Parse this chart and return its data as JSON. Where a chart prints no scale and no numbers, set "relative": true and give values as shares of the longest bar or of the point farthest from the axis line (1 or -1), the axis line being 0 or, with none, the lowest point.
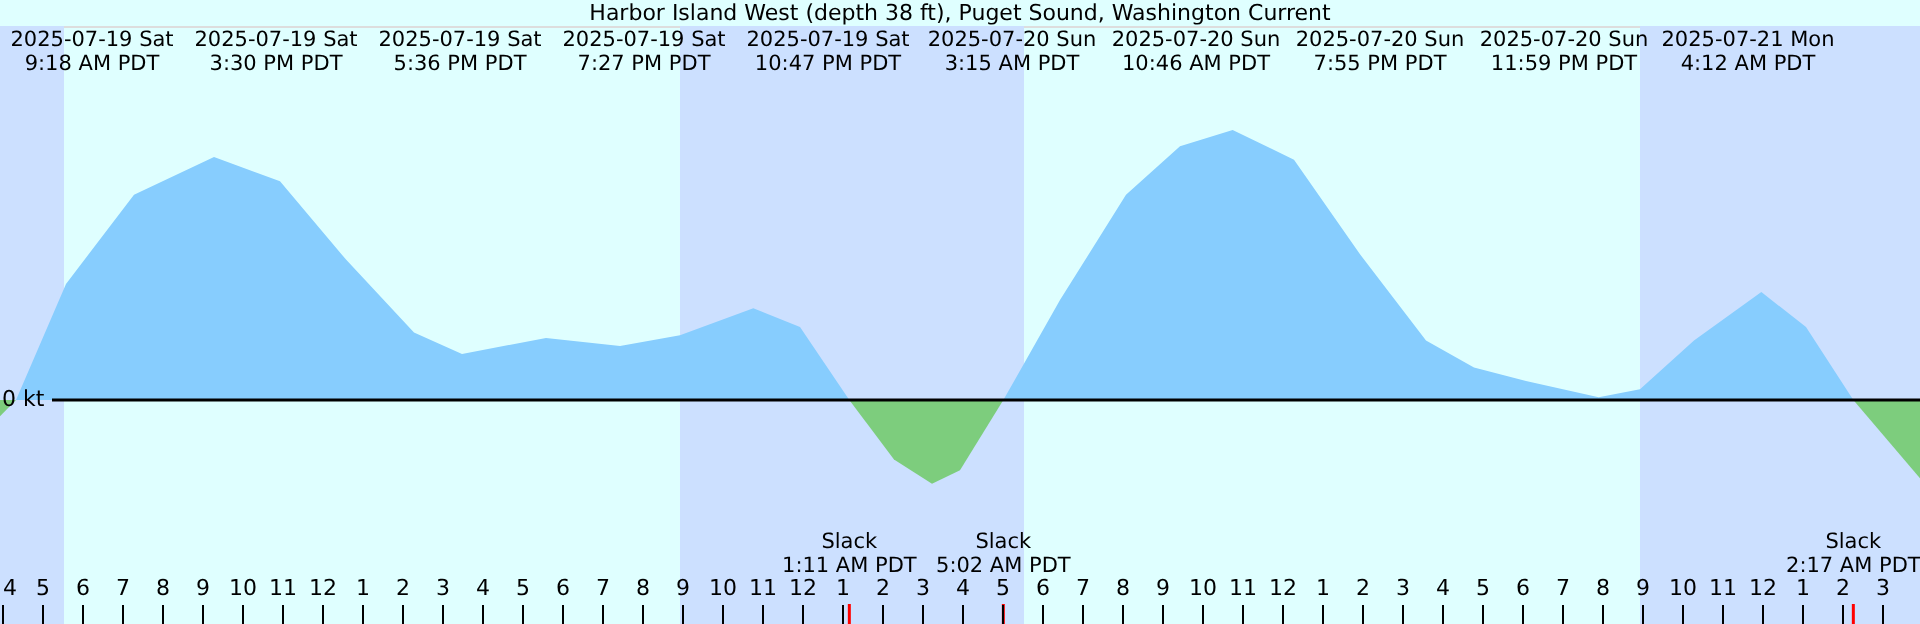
{
  "chart_data": {
    "type": "area",
    "relative": true,
    "title": "Harbor Island West (depth 38 ft), Puget Sound, Washington Current",
    "xlim": [
      "2025-07-19T03:57",
      "2025-07-21T03:57"
    ],
    "xticks": [
      {
        "value": "2025-07-19T04:00",
        "label": "4"
      },
      {
        "value": "2025-07-19T05:00",
        "label": "5"
      },
      {
        "value": "2025-07-19T06:00",
        "label": "6"
      },
      {
        "value": "2025-07-19T07:00",
        "label": "7"
      },
      {
        "value": "2025-07-19T08:00",
        "label": "8"
      },
      {
        "value": "2025-07-19T09:00",
        "label": "9"
      },
      {
        "value": "2025-07-19T10:00",
        "label": "10"
      },
      {
        "value": "2025-07-19T11:00",
        "label": "11"
      },
      {
        "value": "2025-07-19T12:00",
        "label": "12"
      },
      {
        "value": "2025-07-19T13:00",
        "label": "1"
      },
      {
        "value": "2025-07-19T14:00",
        "label": "2"
      },
      {
        "value": "2025-07-19T15:00",
        "label": "3"
      },
      {
        "value": "2025-07-19T16:00",
        "label": "4"
      },
      {
        "value": "2025-07-19T17:00",
        "label": "5"
      },
      {
        "value": "2025-07-19T18:00",
        "label": "6"
      },
      {
        "value": "2025-07-19T19:00",
        "label": "7"
      },
      {
        "value": "2025-07-19T20:00",
        "label": "8"
      },
      {
        "value": "2025-07-19T21:00",
        "label": "9"
      },
      {
        "value": "2025-07-19T22:00",
        "label": "10"
      },
      {
        "value": "2025-07-19T23:00",
        "label": "11"
      },
      {
        "value": "2025-07-20T00:00",
        "label": "12"
      },
      {
        "value": "2025-07-20T01:00",
        "label": "1"
      },
      {
        "value": "2025-07-20T02:00",
        "label": "2"
      },
      {
        "value": "2025-07-20T03:00",
        "label": "3"
      },
      {
        "value": "2025-07-20T04:00",
        "label": "4"
      },
      {
        "value": "2025-07-20T05:00",
        "label": "5"
      },
      {
        "value": "2025-07-20T06:00",
        "label": "6"
      },
      {
        "value": "2025-07-20T07:00",
        "label": "7"
      },
      {
        "value": "2025-07-20T08:00",
        "label": "8"
      },
      {
        "value": "2025-07-20T09:00",
        "label": "9"
      },
      {
        "value": "2025-07-20T10:00",
        "label": "10"
      },
      {
        "value": "2025-07-20T11:00",
        "label": "11"
      },
      {
        "value": "2025-07-20T12:00",
        "label": "12"
      },
      {
        "value": "2025-07-20T13:00",
        "label": "1"
      },
      {
        "value": "2025-07-20T14:00",
        "label": "2"
      },
      {
        "value": "2025-07-20T15:00",
        "label": "3"
      },
      {
        "value": "2025-07-20T16:00",
        "label": "4"
      },
      {
        "value": "2025-07-20T17:00",
        "label": "5"
      },
      {
        "value": "2025-07-20T18:00",
        "label": "6"
      },
      {
        "value": "2025-07-20T19:00",
        "label": "7"
      },
      {
        "value": "2025-07-20T20:00",
        "label": "8"
      },
      {
        "value": "2025-07-20T21:00",
        "label": "9"
      },
      {
        "value": "2025-07-20T22:00",
        "label": "10"
      },
      {
        "value": "2025-07-20T23:00",
        "label": "11"
      },
      {
        "value": "2025-07-21T00:00",
        "label": "12"
      },
      {
        "value": "2025-07-21T01:00",
        "label": "1"
      },
      {
        "value": "2025-07-21T02:00",
        "label": "2"
      },
      {
        "value": "2025-07-21T03:00",
        "label": "3"
      }
    ],
    "series": [
      {
        "color": "#7dcd7d",
        "x": [
          "2025-07-19T03:57",
          "2025-07-19T04:21"
        ],
        "values": [
          -0.06,
          0
        ]
      },
      {
        "color": "#87cdfe",
        "x": [
          "2025-07-19T04:21",
          "2025-07-19T05:36",
          "2025-07-19T07:18",
          "2025-07-19T09:18",
          "2025-07-19T10:57",
          "2025-07-19T12:36",
          "2025-07-19T14:18",
          "2025-07-19T15:30",
          "2025-07-19T17:36",
          "2025-07-19T19:27",
          "2025-07-19T20:57",
          "2025-07-19T22:47",
          "2025-07-19T23:57",
          "2025-07-20T01:11"
        ],
        "values": [
          0,
          0.43,
          0.76,
          0.9,
          0.81,
          0.52,
          0.25,
          0.17,
          0.23,
          0.2,
          0.24,
          0.34,
          0.27,
          0
        ]
      },
      {
        "color": "#7dcd7d",
        "x": [
          "2025-07-20T01:11",
          "2025-07-20T02:18",
          "2025-07-20T03:15",
          "2025-07-20T03:57",
          "2025-07-20T05:02"
        ],
        "values": [
          0,
          -0.22,
          -0.31,
          -0.26,
          0
        ]
      },
      {
        "color": "#87cdfe",
        "x": [
          "2025-07-20T05:02",
          "2025-07-20T06:27",
          "2025-07-20T08:06",
          "2025-07-20T09:27",
          "2025-07-20T10:46",
          "2025-07-20T12:18",
          "2025-07-20T13:57",
          "2025-07-20T15:36",
          "2025-07-20T16:48",
          "2025-07-20T18:06",
          "2025-07-20T19:55",
          "2025-07-20T20:57",
          "2025-07-20T22:18",
          "2025-07-20T23:59",
          "2025-07-21T01:06",
          "2025-07-21T02:17"
        ],
        "values": [
          0,
          0.37,
          0.76,
          0.94,
          1.0,
          0.89,
          0.54,
          0.22,
          0.12,
          0.07,
          0.01,
          0.04,
          0.22,
          0.4,
          0.27,
          0
        ]
      },
      {
        "color": "#7dcd7d",
        "x": [
          "2025-07-21T02:17",
          "2025-07-21T03:57"
        ],
        "values": [
          0,
          -0.29
        ]
      }
    ],
    "ref_lines": [
      {
        "axis": "y",
        "value": 0,
        "label": "0 kt"
      },
      {
        "axis": "x",
        "value": "2025-07-20T01:11",
        "label": "Slack\n1:11 AM PDT",
        "color": "#ff0000"
      },
      {
        "axis": "x",
        "value": "2025-07-20T05:02",
        "label": "Slack\n5:02 AM PDT",
        "color": "#ff0000"
      },
      {
        "axis": "x",
        "value": "2025-07-21T02:17",
        "label": "Slack\n2:17 AM PDT",
        "color": "#ff0000"
      }
    ],
    "bands": [
      {
        "axis": "x",
        "from": "2025-07-19T03:57",
        "to": "2025-07-19T05:33",
        "color": "#cce0ff"
      },
      {
        "axis": "x",
        "from": "2025-07-19T20:57",
        "to": "2025-07-20T05:33",
        "color": "#cce0ff"
      },
      {
        "axis": "x",
        "from": "2025-07-20T20:57",
        "to": "2025-07-21T03:57",
        "color": "#cce0ff"
      }
    ],
    "annotations": [
      "2025-07-19 Sat\n9:18 AM PDT",
      "2025-07-19 Sat\n3:30 PM PDT",
      "2025-07-19 Sat\n5:36 PM PDT",
      "2025-07-19 Sat\n7:27 PM PDT",
      "2025-07-19 Sat\n10:47 PM PDT",
      "2025-07-20 Sun\n3:15 AM PDT",
      "2025-07-20 Sun\n10:46 AM PDT",
      "2025-07-20 Sun\n7:55 PM PDT",
      "2025-07-20 Sun\n11:59 PM PDT",
      "2025-07-21 Mon\n4:12 AM PDT"
    ],
    "grid": false
  }
}
